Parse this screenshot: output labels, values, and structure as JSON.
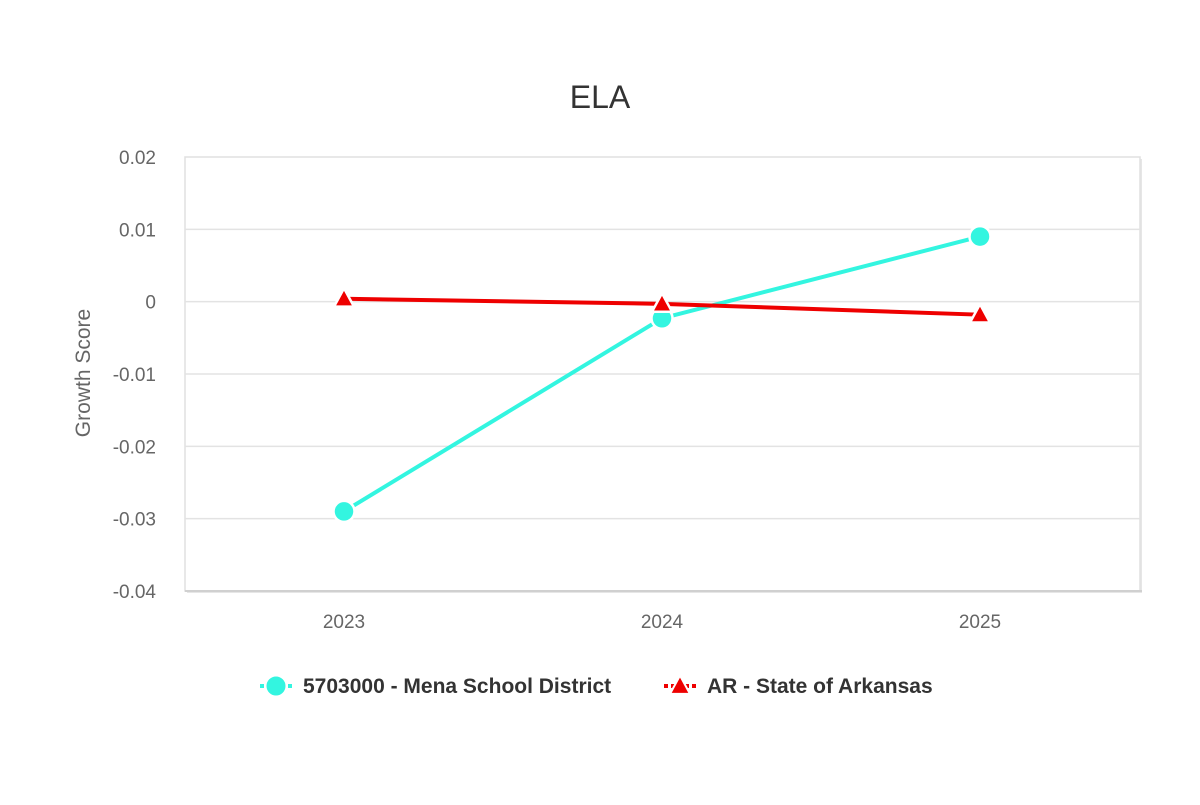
{
  "chart_data": {
    "type": "line",
    "title": "ELA",
    "xlabel": "",
    "ylabel": "Growth Score",
    "categories": [
      "2023",
      "2024",
      "2025"
    ],
    "ylim": [
      -0.04,
      0.02
    ],
    "yticks": [
      0.02,
      0.01,
      0,
      -0.01,
      -0.02,
      -0.03,
      -0.04
    ],
    "ytick_labels": [
      "0.02",
      "0.01",
      "0",
      "-0.01",
      "-0.02",
      "-0.03",
      "-0.04"
    ],
    "grid": true,
    "legend_position": "bottom-center",
    "series": [
      {
        "name": "5703000 - Mena School District",
        "values": [
          -0.029,
          -0.0023,
          0.009
        ],
        "color": "#33f5e0",
        "marker": "circle"
      },
      {
        "name": "AR - State of Arkansas",
        "values": [
          0.0004,
          -0.0003,
          -0.0018
        ],
        "color": "#ee0000",
        "marker": "triangle"
      }
    ]
  }
}
